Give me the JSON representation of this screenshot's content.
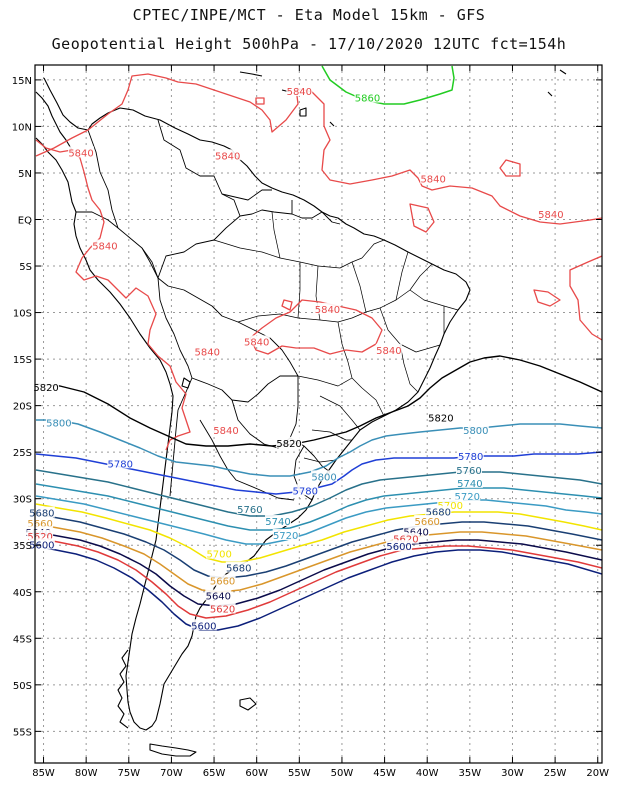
{
  "header": {
    "line1": "CPTEC/INPE/MCT -  Eta Model 15km - GFS",
    "line2": "Geopotential Height 500hPa - 17/10/2020 12UTC fct=154h"
  },
  "axes": {
    "lat_labels": [
      "15N",
      "10N",
      "5N",
      "EQ",
      "5S",
      "10S",
      "15S",
      "20S",
      "25S",
      "30S",
      "35S",
      "40S",
      "45S",
      "50S",
      "55S"
    ],
    "lon_labels": [
      "85W",
      "80W",
      "75W",
      "70W",
      "65W",
      "60W",
      "55W",
      "50W",
      "45W",
      "40W",
      "35W",
      "30W",
      "25W",
      "20W"
    ]
  },
  "contours": [
    {
      "level": "5860",
      "color": "#22cc22",
      "labels": [
        {
          "lon": -47,
          "lat": 13.1
        }
      ]
    },
    {
      "level": "5840",
      "color": "#e84a4a",
      "labels": [
        {
          "lon": -80.6,
          "lat": 7.2
        },
        {
          "lon": -63.4,
          "lat": 6.9
        },
        {
          "lon": -55,
          "lat": 13.8
        },
        {
          "lon": -77.8,
          "lat": -2.8
        },
        {
          "lon": -65.8,
          "lat": -14.2
        },
        {
          "lon": -60,
          "lat": -13.1
        },
        {
          "lon": -51.7,
          "lat": -9.6
        },
        {
          "lon": -44.5,
          "lat": -14.0
        },
        {
          "lon": -39.3,
          "lat": 4.4
        },
        {
          "lon": -25.5,
          "lat": 0.6
        },
        {
          "lon": -63.6,
          "lat": -22.6
        }
      ]
    },
    {
      "level": "5820",
      "color": "#000000",
      "labels": [
        {
          "lon": -84.7,
          "lat": -18.0
        },
        {
          "lon": -56.2,
          "lat": -24.0
        },
        {
          "lon": -38.4,
          "lat": -21.3
        }
      ]
    },
    {
      "level": "5800",
      "color": "#3a8fb7",
      "labels": [
        {
          "lon": -83.2,
          "lat": -21.8
        },
        {
          "lon": -52.1,
          "lat": -27.6
        },
        {
          "lon": -34.3,
          "lat": -22.6
        }
      ]
    },
    {
      "level": "5780",
      "color": "#1f3fd6",
      "labels": [
        {
          "lon": -76,
          "lat": -26.2
        },
        {
          "lon": -54.3,
          "lat": -29.1
        },
        {
          "lon": -34.9,
          "lat": -25.4
        }
      ]
    },
    {
      "level": "5760",
      "color": "#28718a",
      "labels": [
        {
          "lon": -60.8,
          "lat": -31.1
        },
        {
          "lon": -35.1,
          "lat": -26.9
        }
      ]
    },
    {
      "level": "5740",
      "color": "#2c8fb0",
      "labels": [
        {
          "lon": -57.5,
          "lat": -32.4
        },
        {
          "lon": -35.0,
          "lat": -28.3
        }
      ]
    },
    {
      "level": "5720",
      "color": "#3b9bc4",
      "labels": [
        {
          "lon": -56.6,
          "lat": -33.9
        },
        {
          "lon": -35.3,
          "lat": -29.7
        }
      ]
    },
    {
      "level": "5700",
      "color": "#f2e400",
      "labels": [
        {
          "lon": -64.4,
          "lat": -35.9
        },
        {
          "lon": -37.3,
          "lat": -30.7
        }
      ]
    },
    {
      "level": "5680",
      "color": "#1a3f73",
      "labels": [
        {
          "lon": -85.2,
          "lat": -31.5
        },
        {
          "lon": -62.1,
          "lat": -37.4
        },
        {
          "lon": -38.7,
          "lat": -31.4
        }
      ]
    },
    {
      "level": "5660",
      "color": "#d9962b",
      "labels": [
        {
          "lon": -85.4,
          "lat": -32.6
        },
        {
          "lon": -64,
          "lat": -38.8
        },
        {
          "lon": -40.0,
          "lat": -32.4
        }
      ]
    },
    {
      "level": "5640",
      "color": "#0b0b4a",
      "labels": [
        {
          "lon": -85.6,
          "lat": -33.6
        },
        {
          "lon": -64.5,
          "lat": -40.4
        },
        {
          "lon": -41.3,
          "lat": -33.5
        }
      ]
    },
    {
      "level": "5620",
      "color": "#e03a3a",
      "labels": [
        {
          "lon": -85.4,
          "lat": -34.0
        },
        {
          "lon": -64,
          "lat": -41.8
        },
        {
          "lon": -42.5,
          "lat": -34.3
        }
      ]
    },
    {
      "level": "5600",
      "color": "#0c1f7a",
      "labels": [
        {
          "lon": -85.2,
          "lat": -34.9
        },
        {
          "lon": -66.2,
          "lat": -43.6
        },
        {
          "lon": -43.3,
          "lat": -35.1
        }
      ]
    }
  ]
}
